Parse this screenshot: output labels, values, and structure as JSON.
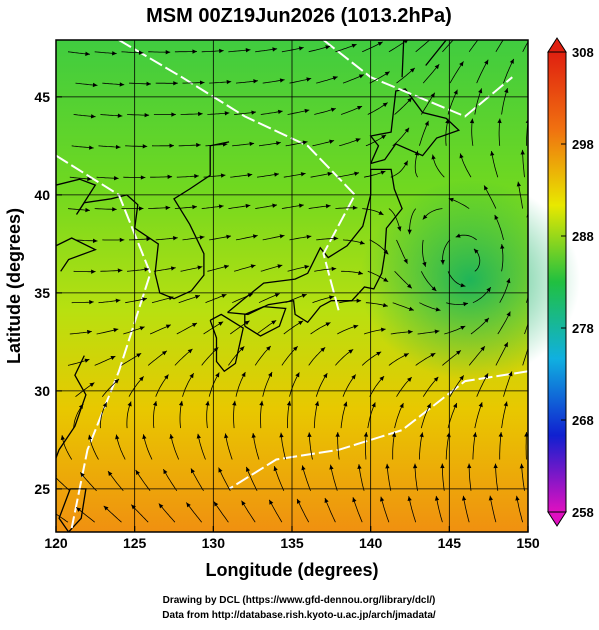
{
  "chart_data": {
    "type": "streamline-map",
    "title": "MSM 00Z19Jun2026 (1013.2hPa)",
    "xlabel": "Longitude (degrees)",
    "ylabel": "Latitude  (degrees)",
    "xlim": [
      120,
      150
    ],
    "ylim": [
      22.8,
      47.9
    ],
    "xticks": [
      120,
      125,
      130,
      135,
      140,
      145,
      150
    ],
    "yticks": [
      25,
      30,
      35,
      40,
      45
    ],
    "grid": true,
    "colorbar": {
      "lim": [
        258,
        308
      ],
      "ticks": [
        258,
        268,
        278,
        288,
        298,
        308
      ],
      "colors": [
        "#e010c0",
        "#1020d0",
        "#10b0e0",
        "#20c040",
        "#e8e800",
        "#f07010",
        "#e02010"
      ]
    },
    "footer": [
      "Drawing by DCL (https://www.gfd-dennou.org/library/dcl/)",
      "Data from http://database.rish.kyoto-u.ac.jp/arch/jmadata/"
    ]
  }
}
